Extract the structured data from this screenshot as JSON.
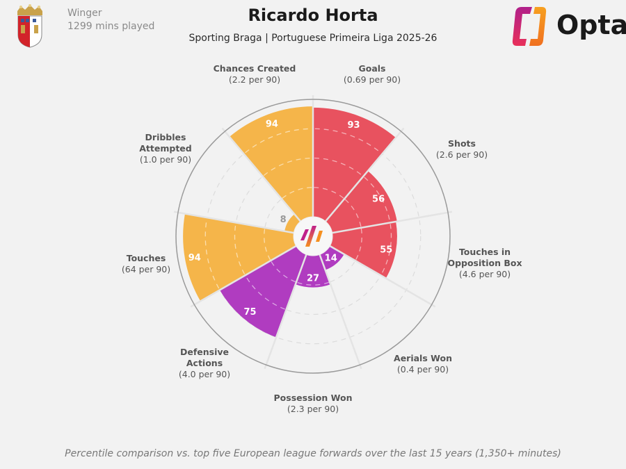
{
  "header": {
    "position": "Winger",
    "minutes": "1299 mins played",
    "player_name": "Ricardo Horta",
    "subtitle": "Sporting Braga | Portuguese Primeira Liga 2025-26",
    "brand": "Opta",
    "team_crest_icon": "sporting-braga-crest-icon"
  },
  "footnote": "Percentile comparison vs. top five European league forwards over the last 15 years (1,350+ minutes)",
  "colors": {
    "attacking": "#e8525f",
    "possession": "#f5b54a",
    "defending": "#b03cc0",
    "background": "#f2f2f2",
    "grid": "#d8d8d8",
    "outer_ring": "#9a9a9a"
  },
  "labels": [
    {
      "name": "Goals",
      "line1": "Goals",
      "line2": "",
      "rate": "(0.69 per 90)"
    },
    {
      "name": "Shots",
      "line1": "Shots",
      "line2": "",
      "rate": "(2.6 per 90)"
    },
    {
      "name": "Touches in Opposition Box",
      "line1": "Touches in",
      "line2": "Opposition Box",
      "rate": "(4.6 per 90)"
    },
    {
      "name": "Aerials Won",
      "line1": "Aerials Won",
      "line2": "",
      "rate": "(0.4 per 90)"
    },
    {
      "name": "Possession Won",
      "line1": "Possession Won",
      "line2": "",
      "rate": "(2.3 per 90)"
    },
    {
      "name": "Defensive Actions",
      "line1": "Defensive",
      "line2": "Actions",
      "rate": "(4.0 per 90)"
    },
    {
      "name": "Touches",
      "line1": "Touches",
      "line2": "",
      "rate": "(64 per 90)"
    },
    {
      "name": "Dribbles Attempted",
      "line1": "Dribbles",
      "line2": "Attempted",
      "rate": "(1.0 per 90)"
    },
    {
      "name": "Chances Created",
      "line1": "Chances Created",
      "line2": "",
      "rate": "(2.2 per 90)"
    }
  ],
  "chart_data": {
    "type": "polar-bar",
    "title": "Ricardo Horta",
    "subtitle": "Sporting Braga | Portuguese Primeira Liga 2025-26",
    "categories": [
      "Goals",
      "Shots",
      "Touches in Opposition Box",
      "Aerials Won",
      "Possession Won",
      "Defensive Actions",
      "Touches",
      "Dribbles Attempted",
      "Chances Created"
    ],
    "values": [
      93,
      56,
      55,
      14,
      27,
      75,
      94,
      8,
      94
    ],
    "per90": [
      "0.69",
      "2.6",
      "4.6",
      "0.4",
      "2.3",
      "4.0",
      "64",
      "1.0",
      "2.2"
    ],
    "groups": [
      "attacking",
      "attacking",
      "attacking",
      "defending",
      "defending",
      "defending",
      "possession",
      "possession",
      "possession"
    ],
    "range": [
      0,
      100
    ],
    "grid_rings": [
      25,
      50,
      75
    ],
    "note": "Percentile comparison vs. top five European league forwards over the last 15 years (1,350+ minutes)"
  }
}
